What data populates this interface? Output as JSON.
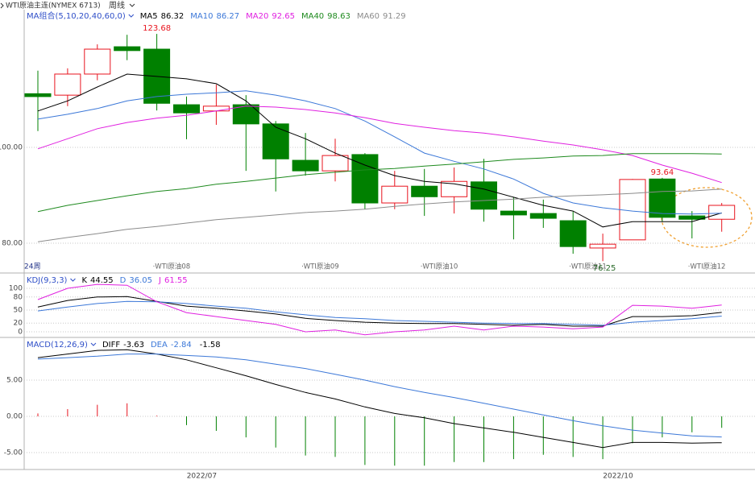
{
  "header": {
    "symbol": "WTI原油主连(NYMEX 6713)",
    "period": "周线"
  },
  "chart_data": [
    {
      "type": "candlestick",
      "title": "MA组合(5,10,20,40,60,0)",
      "count_label": "24周",
      "categories": [
        null,
        null,
        null,
        null,
        "·WTI原油08",
        null,
        null,
        null,
        null,
        "·WTI原油09",
        null,
        null,
        null,
        "·WTI原油10",
        null,
        null,
        null,
        null,
        "·WTI原油11",
        null,
        null,
        null,
        "·WTI原油12",
        null
      ],
      "open": [
        111.2,
        110.9,
        115.3,
        121.0,
        120.5,
        108.9,
        107.6,
        108.9,
        104.9,
        97.3,
        95.1,
        98.5,
        88.4,
        91.9,
        89.7,
        92.8,
        86.7,
        86.2,
        84.7,
        79.0,
        80.7,
        93.4,
        85.7,
        85.0
      ],
      "high": [
        116.0,
        116.5,
        121.5,
        123.5,
        123.68,
        110.6,
        113.1,
        110.9,
        105.5,
        103.0,
        101.8,
        98.8,
        95.1,
        95.5,
        95.8,
        97.6,
        89.6,
        89.1,
        86.6,
        82.0,
        93.4,
        93.64,
        86.7,
        88.4
      ],
      "low": [
        103.4,
        108.6,
        114.0,
        118.2,
        107.7,
        101.7,
        104.7,
        95.1,
        90.8,
        94.1,
        92.9,
        87.1,
        87.1,
        85.7,
        86.2,
        84.5,
        80.8,
        83.2,
        77.8,
        76.25,
        80.7,
        84.5,
        81.0,
        82.4
      ],
      "close": [
        110.6,
        115.3,
        120.5,
        120.2,
        109.2,
        107.2,
        108.6,
        104.9,
        97.6,
        95.1,
        98.3,
        88.4,
        91.9,
        89.7,
        92.9,
        87.1,
        85.9,
        85.2,
        79.3,
        79.8,
        93.3,
        85.4,
        85.0,
        87.9
      ],
      "high_labels": [
        null,
        null,
        null,
        null,
        "123.68",
        null,
        null,
        null,
        null,
        null,
        null,
        null,
        null,
        null,
        null,
        null,
        null,
        null,
        null,
        null,
        null,
        "93.64",
        null,
        null
      ],
      "low_labels": [
        null,
        null,
        null,
        null,
        null,
        null,
        null,
        null,
        null,
        null,
        null,
        null,
        null,
        null,
        null,
        null,
        null,
        null,
        null,
        "76.25",
        null,
        null,
        null,
        null
      ],
      "up_color": "#e8141e",
      "down_color": "#008000",
      "series": [
        {
          "name": "MA5",
          "color": "#000000",
          "values": [
            107.6,
            109.7,
            112.6,
            115.3,
            114.8,
            114.3,
            113.3,
            109.7,
            104.2,
            101.8,
            98.8,
            96.3,
            94.1,
            92.9,
            92.4,
            91.3,
            89.6,
            87.9,
            86.7,
            83.4,
            84.5,
            84.5,
            84.5,
            86.32
          ]
        },
        {
          "name": "MA10",
          "color": "#3c78d8",
          "values": [
            105.9,
            106.9,
            108.1,
            109.7,
            110.6,
            111.1,
            111.4,
            111.8,
            110.9,
            109.7,
            108.1,
            105.5,
            102.2,
            98.8,
            97.1,
            95.5,
            93.4,
            90.4,
            88.4,
            87.4,
            86.7,
            86.2,
            86.1,
            86.27
          ]
        },
        {
          "name": "MA20",
          "color": "#e020e0",
          "values": [
            99.7,
            101.8,
            103.9,
            105.2,
            106.1,
            106.7,
            107.6,
            108.6,
            108.4,
            107.9,
            107.2,
            106.2,
            105.0,
            104.2,
            103.5,
            103.0,
            102.2,
            101.3,
            100.5,
            99.5,
            98.3,
            96.3,
            94.6,
            92.65
          ]
        },
        {
          "name": "MA40",
          "color": "#1e8a1e",
          "values": [
            86.6,
            87.9,
            88.9,
            89.9,
            90.8,
            91.4,
            92.3,
            92.9,
            93.6,
            94.3,
            94.8,
            95.3,
            95.6,
            96.1,
            96.5,
            97.0,
            97.5,
            97.8,
            98.2,
            98.3,
            98.7,
            98.7,
            98.7,
            98.63
          ]
        },
        {
          "name": "MA60",
          "color": "#8c8c8c",
          "values": [
            80.3,
            81.2,
            82.0,
            82.9,
            83.5,
            84.2,
            84.9,
            85.4,
            85.9,
            86.4,
            86.7,
            87.1,
            87.7,
            88.2,
            88.6,
            88.9,
            89.2,
            89.6,
            89.9,
            90.1,
            90.4,
            90.8,
            90.9,
            91.29
          ]
        }
      ],
      "ylim": [
        73.95,
        128.74
      ],
      "yticks": [
        {
          "value": 80,
          "label": "80.00"
        },
        {
          "value": 100,
          "label": "100.00"
        }
      ],
      "grid": true
    },
    {
      "type": "line",
      "title": "KDJ(9,3,3)",
      "series": [
        {
          "name": "K",
          "color": "#000000",
          "values": [
            57,
            72,
            80,
            81,
            70,
            59,
            54,
            48,
            41,
            31,
            26,
            22,
            20,
            19,
            19,
            17,
            15,
            17,
            13,
            13,
            35,
            35,
            37,
            44.55
          ]
        },
        {
          "name": "D",
          "color": "#3c78d8",
          "values": [
            48,
            57,
            65,
            70,
            69,
            65,
            59,
            54,
            46,
            39,
            33,
            30,
            26,
            24,
            22,
            20,
            19,
            19,
            17,
            15,
            22,
            26,
            30,
            36.05
          ]
        },
        {
          "name": "J",
          "color": "#e020e0",
          "values": [
            74,
            100,
            109,
            107,
            69,
            44,
            35,
            26,
            17,
            0,
            4,
            -7,
            0,
            4,
            13,
            4,
            13,
            11,
            7,
            11,
            61,
            59,
            54,
            61.55
          ]
        }
      ],
      "ylim": [
        -11.1,
        133.3
      ],
      "yticks": [
        0,
        20,
        50,
        80,
        100
      ],
      "grid": true
    },
    {
      "type": "macd",
      "title": "MACD(12,26,9)",
      "categories": [
        null,
        null,
        null,
        null,
        null,
        null,
        "2022/07",
        null,
        null,
        null,
        null,
        null,
        null,
        null,
        null,
        null,
        null,
        null,
        null,
        null,
        "2022/10",
        null,
        null,
        null
      ],
      "series": [
        {
          "name": "DIFF",
          "color": "#000000",
          "values": [
            8.1,
            8.6,
            9.1,
            9.2,
            8.6,
            7.8,
            6.7,
            5.6,
            4.4,
            3.3,
            2.4,
            1.3,
            0.4,
            -0.2,
            -1.0,
            -1.6,
            -2.2,
            -2.9,
            -3.6,
            -4.3,
            -3.6,
            -3.6,
            -3.7,
            -3.63
          ]
        },
        {
          "name": "DEA",
          "color": "#3c78d8",
          "values": [
            7.9,
            8.1,
            8.3,
            8.6,
            8.6,
            8.4,
            8.2,
            7.8,
            7.2,
            6.6,
            5.8,
            5.0,
            4.1,
            3.3,
            2.6,
            1.8,
            1.0,
            0.2,
            -0.6,
            -1.3,
            -1.9,
            -2.3,
            -2.7,
            -2.84
          ]
        }
      ],
      "bars": {
        "values": [
          0.4,
          1.0,
          1.6,
          1.8,
          0.1,
          -1.2,
          -2.0,
          -2.9,
          -4.3,
          -5.4,
          -5.6,
          -6.7,
          -6.8,
          -6.8,
          -6.3,
          -6.3,
          -5.9,
          -5.3,
          -5.6,
          -5.9,
          -3.7,
          -2.9,
          -2.2,
          -1.58
        ],
        "up_color": "#e8141e",
        "down_color": "#008000"
      },
      "ylim": [
        -7.22,
        10.78
      ],
      "yticks": [
        {
          "value": -5,
          "label": "-5.00"
        },
        {
          "value": 0,
          "label": "0.00"
        },
        {
          "value": 5,
          "label": "5.00"
        }
      ],
      "grid": true
    }
  ]
}
